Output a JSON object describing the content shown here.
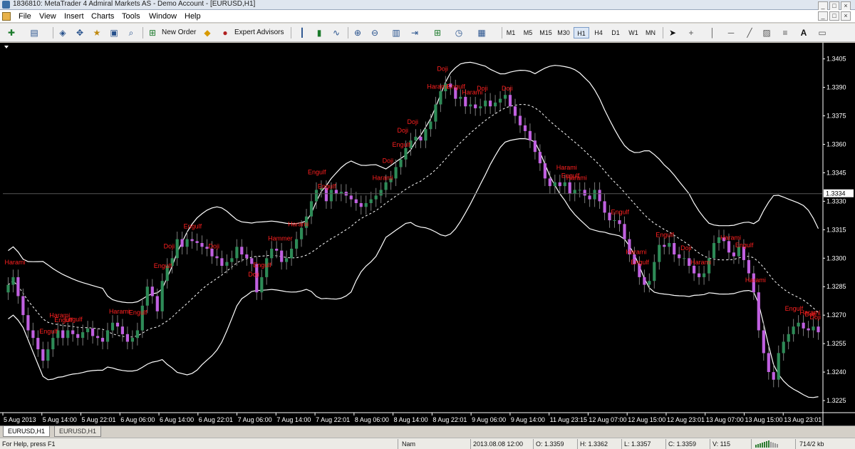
{
  "window": {
    "title": "1836810: MetaTrader 4 Admiral Markets AS - Demo Account - [EURUSD,H1]",
    "controls": [
      "_",
      "□",
      "×"
    ]
  },
  "menu": [
    "File",
    "View",
    "Insert",
    "Charts",
    "Tools",
    "Window",
    "Help"
  ],
  "toolbar": {
    "new_order_label": "New Order",
    "expert_advisors_label": "Expert Advisors",
    "timeframes": [
      "M1",
      "M5",
      "M15",
      "M30",
      "H1",
      "H4",
      "D1",
      "W1",
      "MN"
    ],
    "active_timeframe": "H1",
    "text_tool": "A"
  },
  "chart_data": {
    "type": "candlestick",
    "symbol": "EURUSD",
    "timeframe": "H1",
    "price_axis": {
      "ticks": [
        "1.3405",
        "1.3390",
        "1.3375",
        "1.3360",
        "1.3345",
        "1.3330",
        "1.3315",
        "1.3300",
        "1.3285",
        "1.3270",
        "1.3255",
        "1.3240",
        "1.3225"
      ],
      "range": [
        1.3219,
        1.3412
      ],
      "current_price": "1.3334"
    },
    "time_axis": {
      "ticks": [
        "5 Aug 2013",
        "5 Aug 14:00",
        "5 Aug 22:01",
        "6 Aug 06:00",
        "6 Aug 14:00",
        "6 Aug 22:01",
        "7 Aug 06:00",
        "7 Aug 14:00",
        "7 Aug 22:01",
        "8 Aug 06:00",
        "8 Aug 14:00",
        "8 Aug 22:01",
        "9 Aug 06:00",
        "9 Aug 14:00",
        "11 Aug 23:15",
        "12 Aug 07:00",
        "12 Aug 15:00",
        "12 Aug 23:01",
        "13 Aug 07:00",
        "13 Aug 15:00",
        "13 Aug 23:01"
      ]
    },
    "colors": {
      "bull": "#2e8b57",
      "bear": "#c060e0",
      "bands": "#ffffff",
      "labels": "#ff2020",
      "background": "#000000"
    },
    "indicators": [
      "Bollinger Bands (upper, middle dashed, lower)"
    ],
    "closes": [
      1.3286,
      1.329,
      1.328,
      1.327,
      1.3262,
      1.3258,
      1.3252,
      1.3246,
      1.3252,
      1.3258,
      1.3262,
      1.3258,
      1.3262,
      1.326,
      1.3258,
      1.3261,
      1.3263,
      1.3259,
      1.3258,
      1.3256,
      1.3262,
      1.3266,
      1.3264,
      1.326,
      1.3256,
      1.3258,
      1.3262,
      1.3275,
      1.3285,
      1.328,
      1.3272,
      1.3288,
      1.3296,
      1.33,
      1.331,
      1.3306,
      1.331,
      1.3309,
      1.3308,
      1.3306,
      1.3305,
      1.3301,
      1.33,
      1.3296,
      1.3298,
      1.33,
      1.3306,
      1.3302,
      1.33,
      1.3297,
      1.3282,
      1.329,
      1.33,
      1.3305,
      1.3304,
      1.3298,
      1.33,
      1.3305,
      1.331,
      1.3316,
      1.3322,
      1.333,
      1.3336,
      1.3337,
      1.333,
      1.3336,
      1.3334,
      1.3335,
      1.3333,
      1.3331,
      1.3329,
      1.3327,
      1.3329,
      1.3331,
      1.3333,
      1.3336,
      1.334,
      1.3342,
      1.3348,
      1.3352,
      1.3358,
      1.3362,
      1.3364,
      1.3362,
      1.3368,
      1.3372,
      1.3381,
      1.3388,
      1.3392,
      1.339,
      1.3384,
      1.3385,
      1.338,
      1.3381,
      1.3379,
      1.338,
      1.3383,
      1.338,
      1.3382,
      1.3384,
      1.3386,
      1.338,
      1.3375,
      1.337,
      1.3367,
      1.3362,
      1.3356,
      1.335,
      1.3342,
      1.3338,
      1.334,
      1.3338,
      1.334,
      1.3334,
      1.3336,
      1.3336,
      1.3333,
      1.3331,
      1.3336,
      1.333,
      1.3324,
      1.332,
      1.332,
      1.3318,
      1.331,
      1.3302,
      1.3297,
      1.329,
      1.3286,
      1.3288,
      1.3298,
      1.3307,
      1.3306,
      1.3308,
      1.3302,
      1.33,
      1.33,
      1.3296,
      1.3292,
      1.329,
      1.3292,
      1.33,
      1.3308,
      1.3311,
      1.3309,
      1.3303,
      1.3301,
      1.3306,
      1.3299,
      1.3292,
      1.3282,
      1.3262,
      1.325,
      1.324,
      1.3236,
      1.325,
      1.3256,
      1.326,
      1.3264,
      1.3266,
      1.3263,
      1.3262,
      1.3264,
      1.3261
    ],
    "pattern_labels": [
      {
        "bar": 1,
        "text": "Harami"
      },
      {
        "bar": 8,
        "text": "Engulf"
      },
      {
        "bar": 11,
        "text": "Engulf"
      },
      {
        "bar": 13,
        "text": "Engulf"
      },
      {
        "bar": 10,
        "text": "Harami"
      },
      {
        "bar": 22,
        "text": "Harami"
      },
      {
        "bar": 26,
        "text": "Engulf"
      },
      {
        "bar": 31,
        "text": "Engulf"
      },
      {
        "bar": 33,
        "text": "Doji"
      },
      {
        "bar": 37,
        "text": "Engulf"
      },
      {
        "bar": 42,
        "text": "Doji"
      },
      {
        "bar": 50,
        "text": "Doji"
      },
      {
        "bar": 51,
        "text": "Engulf"
      },
      {
        "bar": 54,
        "text": "Hammer"
      },
      {
        "bar": 58,
        "text": "Harami"
      },
      {
        "bar": 62,
        "text": "Engulf"
      },
      {
        "bar": 64,
        "text": "Engulf"
      },
      {
        "bar": 75,
        "text": "Harami"
      },
      {
        "bar": 77,
        "text": "Doji"
      },
      {
        "bar": 79,
        "text": "Engulf"
      },
      {
        "bar": 80,
        "text": "Doji"
      },
      {
        "bar": 82,
        "text": "Doji"
      },
      {
        "bar": 86,
        "text": "Harami"
      },
      {
        "bar": 88,
        "text": "Doji"
      },
      {
        "bar": 90,
        "text": "Engulf"
      },
      {
        "bar": 93,
        "text": "Harami"
      },
      {
        "bar": 96,
        "text": "Doji"
      },
      {
        "bar": 101,
        "text": "Doji"
      },
      {
        "bar": 112,
        "text": "Harami"
      },
      {
        "bar": 113,
        "text": "Engulf"
      },
      {
        "bar": 114,
        "text": "Harami"
      },
      {
        "bar": 123,
        "text": "Engulf"
      },
      {
        "bar": 126,
        "text": "Harami"
      },
      {
        "bar": 127,
        "text": "Engulf"
      },
      {
        "bar": 132,
        "text": "Engulf"
      },
      {
        "bar": 137,
        "text": "Doji"
      },
      {
        "bar": 139,
        "text": "Harami"
      },
      {
        "bar": 145,
        "text": "Harami"
      },
      {
        "bar": 148,
        "text": "Engulf"
      },
      {
        "bar": 150,
        "text": "Harami"
      },
      {
        "bar": 158,
        "text": "Engulf"
      },
      {
        "bar": 161,
        "text": "Harami"
      },
      {
        "bar": 162,
        "text": "Doji"
      },
      {
        "bar": 163,
        "text": "Doji"
      }
    ]
  },
  "tabs": [
    "EURUSD,H1",
    "EURUSD,H1"
  ],
  "active_tab": 0,
  "status": {
    "help": "For Help, press F1",
    "profile": "Nam",
    "datetime": "2013.08.08 12:00",
    "open": "O: 1.3359",
    "high": "H: 1.3362",
    "low": "L: 1.3357",
    "close": "C: 1.3359",
    "volume": "V: 115",
    "traffic": "714/2 kb"
  }
}
